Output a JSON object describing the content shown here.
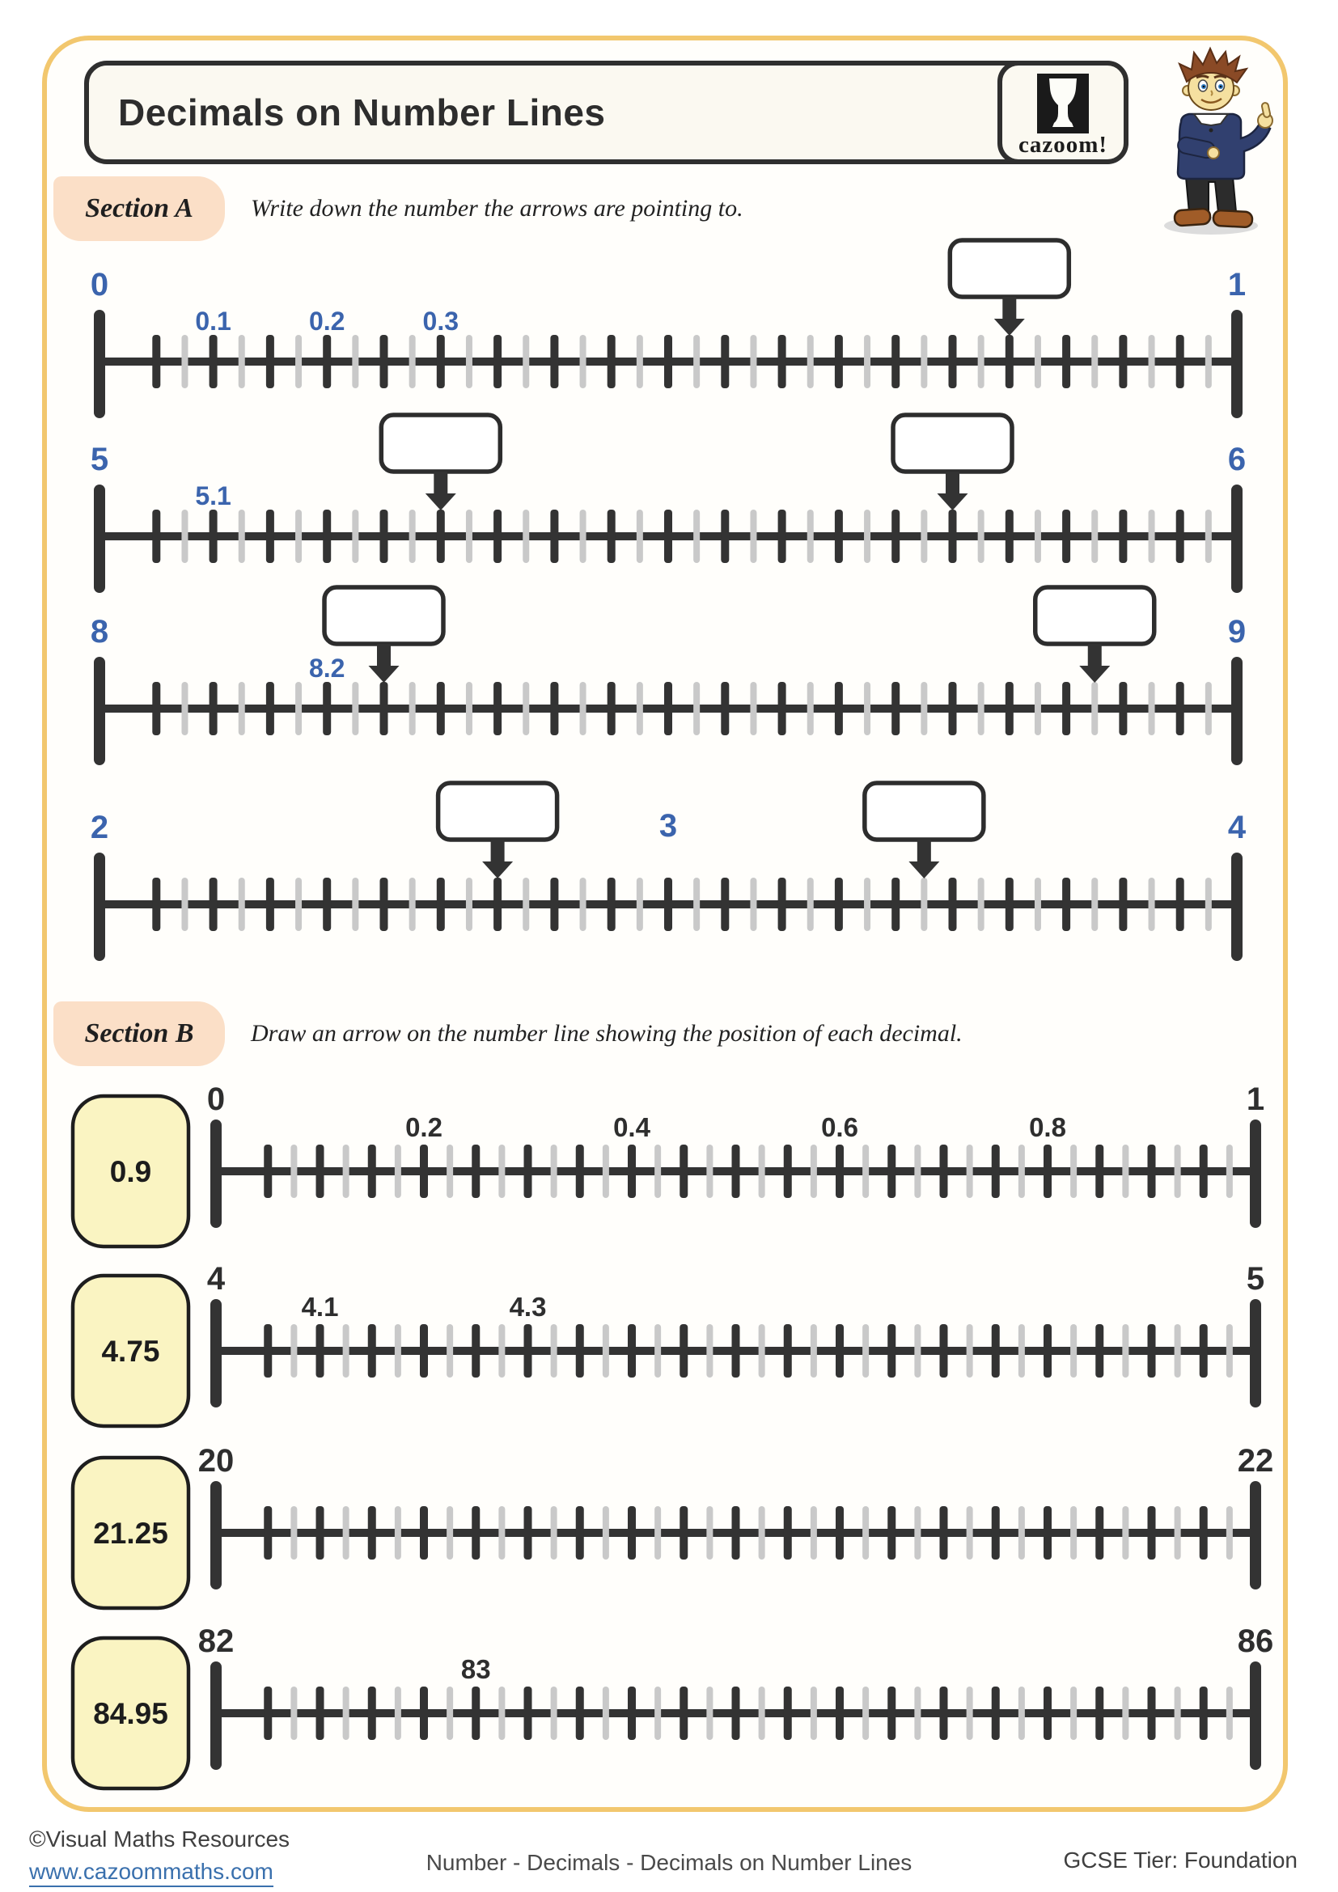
{
  "header": {
    "title": "Decimals on Number Lines",
    "logo_text": "cazoom!"
  },
  "section_a": {
    "label": "Section A",
    "instruction": "Write down the number the arrows are pointing to.",
    "number_lines": [
      {
        "start_label": "0",
        "end_label": "1",
        "tick_labels": [
          {
            "text": "0.1",
            "pos": 0.1
          },
          {
            "text": "0.2",
            "pos": 0.2
          },
          {
            "text": "0.3",
            "pos": 0.3
          }
        ],
        "answer_arrows": [
          {
            "pos": 0.8
          }
        ]
      },
      {
        "start_label": "5",
        "end_label": "6",
        "tick_labels": [
          {
            "text": "5.1",
            "pos": 0.1
          }
        ],
        "answer_arrows": [
          {
            "pos": 0.3
          },
          {
            "pos": 0.75
          }
        ]
      },
      {
        "start_label": "8",
        "end_label": "9",
        "tick_labels": [
          {
            "text": "8.2",
            "pos": 0.2
          }
        ],
        "answer_arrows": [
          {
            "pos": 0.25
          },
          {
            "pos": 0.875
          }
        ]
      },
      {
        "start_label": "2",
        "end_label": "4",
        "tick_labels": [
          {
            "text": "3",
            "pos": 0.5,
            "major": true
          }
        ],
        "answer_arrows": [
          {
            "pos": 0.35
          },
          {
            "pos": 0.725
          }
        ]
      }
    ]
  },
  "section_b": {
    "label": "Section B",
    "instruction": "Draw an arrow on the number line showing the position of each decimal.",
    "rows": [
      {
        "prompt": "0.9",
        "start_label": "0",
        "end_label": "1",
        "tick_labels": [
          {
            "text": "0.2",
            "pos": 0.2
          },
          {
            "text": "0.4",
            "pos": 0.4
          },
          {
            "text": "0.6",
            "pos": 0.6
          },
          {
            "text": "0.8",
            "pos": 0.8
          }
        ]
      },
      {
        "prompt": "4.75",
        "start_label": "4",
        "end_label": "5",
        "tick_labels": [
          {
            "text": "4.1",
            "pos": 0.1
          },
          {
            "text": "4.3",
            "pos": 0.3
          }
        ]
      },
      {
        "prompt": "21.25",
        "start_label": "20",
        "end_label": "22",
        "tick_labels": []
      },
      {
        "prompt": "84.95",
        "start_label": "82",
        "end_label": "86",
        "tick_labels": [
          {
            "text": "83",
            "pos": 0.25
          }
        ]
      }
    ]
  },
  "footer": {
    "copyright": "©Visual Maths Resources",
    "url": "www.cazoommaths.com",
    "center": "Number - Decimals - Decimals on Number Lines",
    "right": "GCSE Tier: Foundation"
  },
  "colors": {
    "accent_blue": "#3b64ad",
    "ink": "#2d2d2d",
    "tick_dark": "#333333",
    "tick_light": "#c9c9c9",
    "border_gold": "#f2c76e",
    "section_label_bg": "#fbdfc7",
    "prompt_box_fill": "#faf4c2",
    "footer_link": "#3a70ad"
  }
}
